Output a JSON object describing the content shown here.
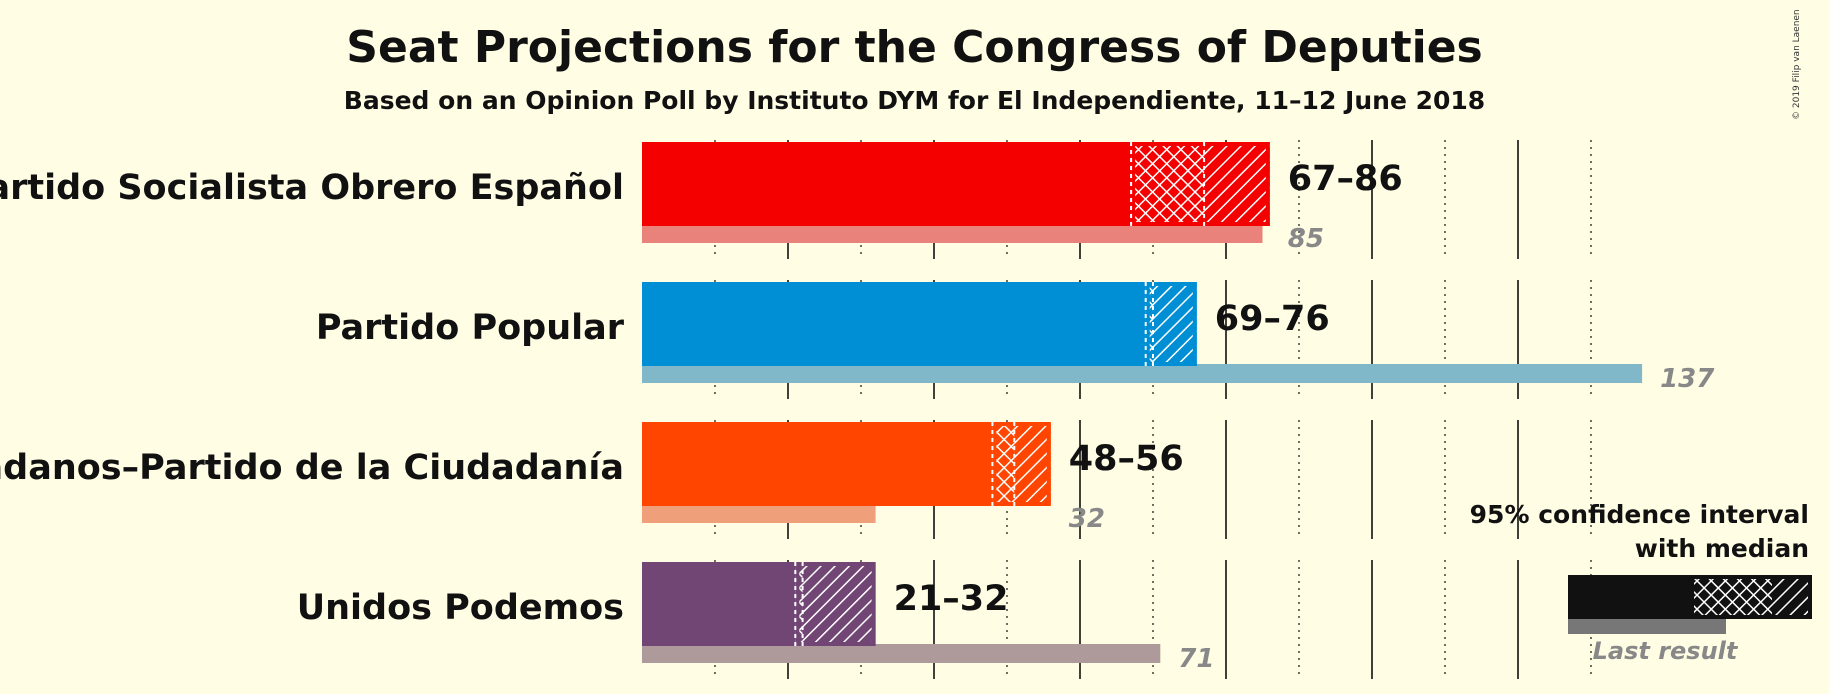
{
  "header": {
    "title": "Seat Projections for the Congress of Deputies",
    "subtitle": "Based on an Opinion Poll by Instituto DYM for El Independiente, 11–12 June 2018",
    "credit": "© 2019 Filip van Laenen"
  },
  "legend": {
    "ci_label": "95% confidence interval with median",
    "last_result_label": "Last result",
    "colors": {
      "main": "#111111",
      "last": "#777777"
    }
  },
  "chart_data": {
    "type": "bar",
    "title": "Seat Projections for the Congress of Deputies",
    "subtitle": "Based on an Opinion Poll by Instituto DYM for El Independiente, 11–12 June 2018",
    "orientation": "horizontal",
    "categories": [
      "Partido Socialista Obrero Español",
      "Partido Popular",
      "Ciudadanos–Partido de la Ciudadanía",
      "Unidos Podemos"
    ],
    "series": [
      {
        "key": "ci_low",
        "values": [
          67,
          69,
          48,
          21
        ]
      },
      {
        "key": "median",
        "values": [
          77,
          70,
          51,
          22
        ]
      },
      {
        "key": "ci_high",
        "values": [
          86,
          76,
          56,
          32
        ]
      },
      {
        "key": "last_result",
        "values": [
          85,
          137,
          32,
          71
        ]
      }
    ],
    "range_labels": [
      "67–86",
      "69–76",
      "48–56",
      "21–32"
    ],
    "last_labels": [
      "85",
      "137",
      "32",
      "71"
    ],
    "colors": [
      "#F40000",
      "#008FD5",
      "#FF4500",
      "#714674"
    ],
    "last_colors": [
      "#E8827A",
      "#80B8CA",
      "#EFA07A",
      "#AE9A9B"
    ],
    "gridlines": [
      10,
      20,
      30,
      40,
      50,
      60,
      70,
      80,
      90,
      100,
      110,
      120,
      130
    ],
    "xlim": [
      0,
      137
    ],
    "grid": true
  }
}
